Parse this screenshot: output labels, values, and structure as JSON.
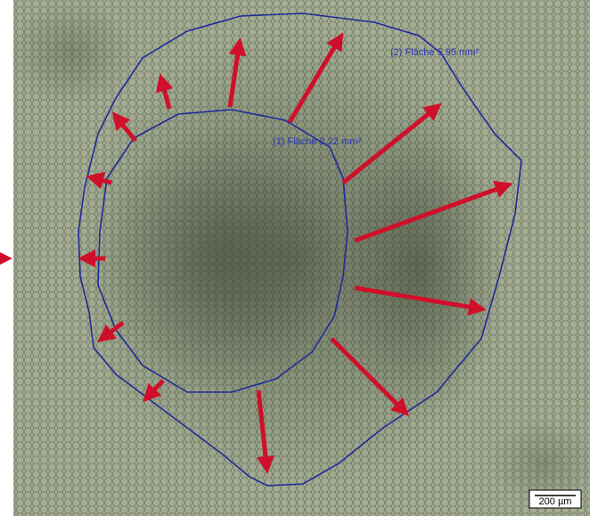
{
  "labels": {
    "outer": "(2) Fläche 5.95 mm²",
    "inner": "(1) Fläche 2.22 mm²"
  },
  "scale_bar": "200 µm"
}
